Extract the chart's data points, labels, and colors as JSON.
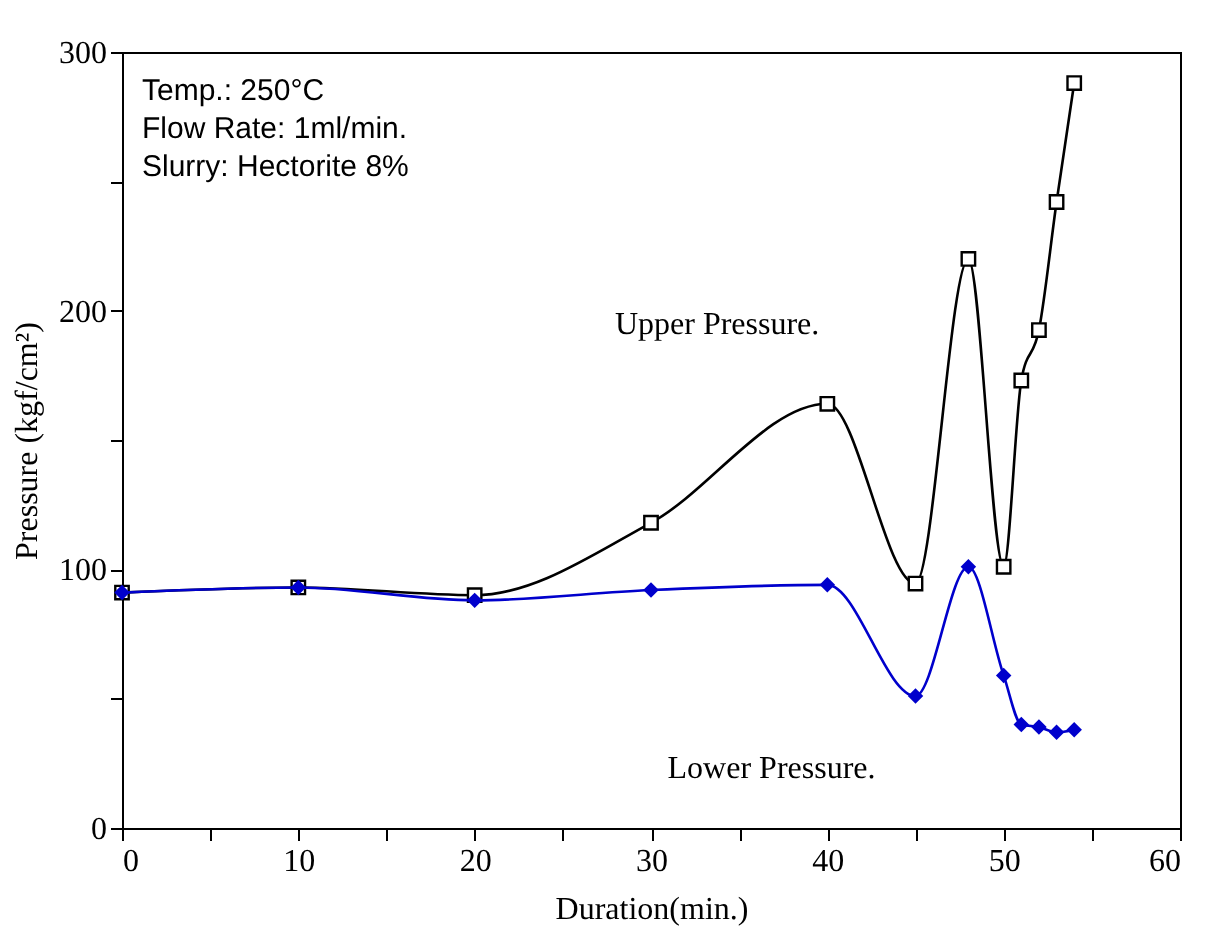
{
  "chart_data": {
    "type": "line",
    "xlabel": "Duration(min.)",
    "ylabel": "Pressure (kgf/cm²)",
    "annotations": [
      "Temp.: 250°C",
      "Flow Rate: 1ml/min.",
      "Slurry: Hectorite 8%"
    ],
    "xlim": [
      0,
      60
    ],
    "xticks": [
      0,
      {
        "value": 5,
        "label": null
      },
      10,
      {
        "value": 15,
        "label": null
      },
      20,
      {
        "value": 25,
        "label": null
      },
      30,
      {
        "value": 35,
        "label": null
      },
      40,
      {
        "value": 45,
        "label": null
      },
      50,
      {
        "value": 55,
        "label": null
      },
      60
    ],
    "ylim": [
      0,
      300
    ],
    "yticks": [
      0,
      {
        "value": 50,
        "label": null
      },
      100,
      {
        "value": 150,
        "label": null
      },
      200,
      {
        "value": 250,
        "label": null
      },
      300
    ],
    "grid": false,
    "series": [
      {
        "name": "Upper Pressure.",
        "color": "#000000",
        "marker": "square",
        "line_style": "solid",
        "x": [
          0,
          10,
          20,
          30,
          40,
          45,
          48,
          50,
          51,
          52,
          53,
          54
        ],
        "values": [
          91,
          93,
          90,
          118,
          164,
          94.5,
          220,
          101,
          173,
          192.5,
          242,
          288
        ]
      },
      {
        "name": "Lower Pressure.",
        "color": "#0000cc",
        "marker": "diamond",
        "line_style": "solid",
        "x": [
          0,
          10,
          20,
          30,
          40,
          45,
          48,
          50,
          51,
          52,
          53,
          54
        ],
        "values": [
          91,
          93,
          88,
          92,
          94,
          51,
          101,
          59,
          40,
          39,
          37,
          38
        ]
      }
    ]
  }
}
